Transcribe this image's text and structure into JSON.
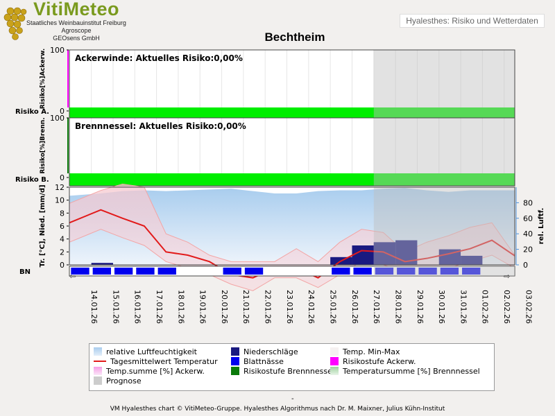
{
  "header": {
    "logo_title": "VitiMeteo",
    "logo_lines": [
      "Staatliches Weinbauinstitut Freiburg",
      "Agroscope",
      "GEOsens GmbH"
    ],
    "link_text": "Hyalesthes: Risiko und Wetterdaten"
  },
  "footer": {
    "dash": "-",
    "text": "VM Hyalesthes chart © VitiMeteo-Gruppe. Hyalesthes Algorithmus nach Dr. M. Maixner, Julius Kühn-Institut"
  },
  "colors": {
    "humidity": "#a9cdee",
    "temp_mean": "#e21a1a",
    "temp_band": "#f3a5a5",
    "precipitation": "#1a1a80",
    "leaf_wetness": "#0000ee",
    "risk_ackerwinde": "#ff00ff",
    "risk_brennnessel": "#00ee00",
    "prognose": "#cccccc"
  },
  "chart_data": [
    {
      "type": "line",
      "panel": "Ackerwinde",
      "title": "Ackerwinde: Aktuelles Risiko:0,00%",
      "ylabel": "Risiko[%]Ackerw.",
      "row_label": "Risiko A.",
      "ylim": [
        0,
        100
      ],
      "yticks": [
        0,
        100
      ],
      "risk_values": [
        0,
        0,
        0,
        0,
        0,
        0,
        0,
        0,
        0,
        0,
        0,
        0,
        0,
        0,
        0,
        0,
        0,
        0,
        0,
        0,
        0
      ],
      "risk_level": "none"
    },
    {
      "type": "line",
      "panel": "Brennnessel",
      "title": "Brennnessel: Aktuelles Risiko:0,00%",
      "ylabel": "Risiko[%]Brenn.",
      "row_label": "Risiko B.",
      "ylim": [
        0,
        100
      ],
      "yticks": [
        0,
        100
      ],
      "risk_values": [
        0,
        0,
        0,
        0,
        0,
        0,
        0,
        0,
        0,
        0,
        0,
        0,
        0,
        0,
        0,
        0,
        0,
        0,
        0,
        0,
        0
      ],
      "risk_level": "none"
    },
    {
      "type": "area",
      "panel": "Wetter",
      "ylabel_left": "Tr. [°C], Nied. [mm/d]",
      "ylabel_right": "rel. Luftf.",
      "row_label": "BN",
      "ylim_left": [
        0,
        12
      ],
      "yticks_left": [
        0,
        2,
        4,
        6,
        8,
        10,
        12
      ],
      "ylim_right": [
        0,
        100
      ],
      "yticks_right": [
        0,
        20,
        40,
        60,
        80
      ],
      "x": [
        "14.01.26",
        "15.01.26",
        "16.01.26",
        "17.01.26",
        "18.01.26",
        "19.01.26",
        "20.01.26",
        "21.01.26",
        "22.01.26",
        "23.01.26",
        "24.01.26",
        "25.01.26",
        "26.01.26",
        "27.01.26",
        "28.01.26",
        "29.01.26",
        "30.01.26",
        "31.01.26",
        "01.02.26",
        "02.02.26",
        "03.02.26"
      ],
      "prognose_from": "28.01.26",
      "series": [
        {
          "name": "relative Luftfeuchtigkeit",
          "axis": "right",
          "values": [
            89,
            92,
            95,
            96,
            95,
            96,
            97,
            98,
            95,
            92,
            92,
            95,
            96,
            96,
            98,
            99,
            96,
            94,
            96,
            96,
            96
          ]
        },
        {
          "name": "Tagesmittelwert Temperatur",
          "axis": "left",
          "values": [
            6.5,
            8.5,
            7.2,
            6.0,
            2.0,
            1.5,
            0.5,
            -1.5,
            -2.0,
            -0.5,
            -0.5,
            -2.0,
            0.5,
            2.2,
            2.0,
            0.5,
            1.0,
            1.7,
            2.5,
            3.8,
            1.4
          ]
        },
        {
          "name": "Temp. Min-Max",
          "axis": "left",
          "min": [
            3.5,
            5.5,
            4.2,
            3.0,
            0.5,
            -0.5,
            -1.5,
            -3.0,
            -4.0,
            -2.0,
            -2.0,
            -3.5,
            -1.5,
            0.5,
            0.0,
            -1.0,
            -0.5,
            -0.5,
            0.5,
            1.5,
            -0.5
          ],
          "max": [
            9.5,
            11.5,
            12.5,
            12.0,
            4.8,
            3.5,
            1.5,
            0.5,
            0.5,
            0.5,
            2.5,
            0.5,
            3.5,
            5.5,
            5.0,
            2.0,
            3.5,
            4.5,
            5.8,
            6.5,
            1.5
          ]
        },
        {
          "name": "Niederschläge",
          "axis": "left",
          "values": [
            0.0,
            0.3,
            0.0,
            0.0,
            0.0,
            0.0,
            0.0,
            0.0,
            0.0,
            0.0,
            0.0,
            0.0,
            1.2,
            3.0,
            3.5,
            3.8,
            0.0,
            2.4,
            1.4,
            0.0,
            0.0
          ]
        },
        {
          "name": "Blattnässe",
          "axis": "row",
          "values": [
            1,
            1,
            1,
            1,
            1,
            0,
            0,
            1,
            1,
            0,
            0,
            0,
            1,
            1,
            1,
            1,
            1,
            1,
            1,
            0,
            0
          ]
        }
      ],
      "legend": [
        {
          "label": "relative Luftfeuchtigkeit",
          "swatch": "humidity"
        },
        {
          "label": "Niederschläge",
          "swatch": "precipitation"
        },
        {
          "label": "Temp. Min-Max",
          "swatch": "band"
        },
        {
          "label": "Tagesmittelwert Temperatur",
          "swatch": "temp_line"
        },
        {
          "label": "Blattnässe",
          "swatch": "leaf_wetness"
        },
        {
          "label": "Risikostufe Ackerw.",
          "swatch": "risk_ackerwinde"
        },
        {
          "label": "Temp.summe [%] Ackerw.",
          "swatch": "tempsum_ackerwinde"
        },
        {
          "label": "Risikostufe Brennnessel",
          "swatch": "risk_brennnessel_dark"
        },
        {
          "label": "Temperatursumme [%] Brennnessel",
          "swatch": "tempsum_brennnessel"
        },
        {
          "label": "Prognose",
          "swatch": "prognose"
        }
      ]
    }
  ],
  "chart_title": "Bechtheim"
}
